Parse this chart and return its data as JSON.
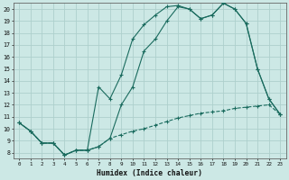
{
  "xlabel": "Humidex (Indice chaleur)",
  "bg_color": "#cce8e5",
  "grid_color": "#aed0cc",
  "line_color": "#1a6b5e",
  "xlim": [
    -0.5,
    23.5
  ],
  "ylim": [
    7.5,
    20.5
  ],
  "xticks": [
    0,
    1,
    2,
    3,
    4,
    5,
    6,
    7,
    8,
    9,
    10,
    11,
    12,
    13,
    14,
    15,
    16,
    17,
    18,
    19,
    20,
    21,
    22,
    23
  ],
  "yticks": [
    8,
    9,
    10,
    11,
    12,
    13,
    14,
    15,
    16,
    17,
    18,
    19,
    20
  ],
  "line_min_x": [
    0,
    1,
    2,
    3,
    4,
    5,
    6,
    7,
    8,
    9,
    10,
    11,
    12,
    13,
    14,
    15,
    16,
    17,
    18,
    19,
    20,
    21,
    22,
    23
  ],
  "line_min_y": [
    10.5,
    9.8,
    8.8,
    8.8,
    7.8,
    8.2,
    8.2,
    8.5,
    9.2,
    9.5,
    9.8,
    10.0,
    10.3,
    10.6,
    10.9,
    11.1,
    11.3,
    11.4,
    11.5,
    11.7,
    11.8,
    11.9,
    12.0,
    11.2
  ],
  "line_up_x": [
    0,
    1,
    2,
    3,
    4,
    5,
    6,
    7,
    8,
    9,
    10,
    11,
    12,
    13,
    14,
    15,
    16,
    17,
    18,
    19,
    20,
    21,
    22,
    23
  ],
  "line_up_y": [
    10.5,
    9.8,
    8.8,
    8.8,
    7.8,
    8.2,
    8.2,
    13.5,
    12.5,
    14.5,
    17.5,
    18.7,
    19.5,
    20.2,
    20.3,
    20.0,
    19.2,
    19.5,
    20.5,
    20.0,
    18.8,
    15.0,
    12.5,
    11.2
  ],
  "line_mid_x": [
    0,
    1,
    2,
    3,
    4,
    5,
    6,
    7,
    8,
    9,
    10,
    11,
    12,
    13,
    14,
    15,
    16,
    17,
    18,
    19,
    20,
    21,
    22,
    23
  ],
  "line_mid_y": [
    10.5,
    9.8,
    8.8,
    8.8,
    7.8,
    8.2,
    8.2,
    8.5,
    9.2,
    12.0,
    13.5,
    16.5,
    17.5,
    19.0,
    20.2,
    20.0,
    19.2,
    19.5,
    20.5,
    20.0,
    18.8,
    15.0,
    12.5,
    11.2
  ]
}
